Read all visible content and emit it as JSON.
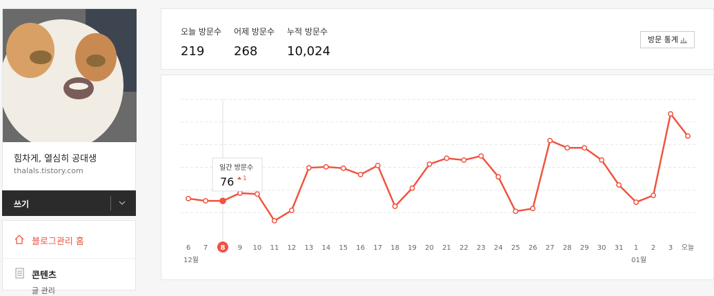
{
  "sidebar": {
    "blog_title": "힘차게, 열심히 공대생",
    "blog_url": "thalals.tistory.com",
    "write": "쓰기",
    "menu": [
      "블로그관리 홈",
      "콘텐츠",
      "글 관리"
    ]
  },
  "stats": {
    "items": [
      {
        "label": "오늘 방문수",
        "value": "219"
      },
      {
        "label": "어제 방문수",
        "value": "268"
      },
      {
        "label": "누적 방문수",
        "value": "10,024"
      }
    ],
    "button": "방문 통계"
  },
  "chart_data": {
    "type": "line",
    "categories": [
      "6",
      "7",
      "8",
      "9",
      "10",
      "11",
      "12",
      "13",
      "14",
      "15",
      "16",
      "17",
      "18",
      "19",
      "20",
      "21",
      "22",
      "23",
      "24",
      "25",
      "26",
      "27",
      "28",
      "29",
      "30",
      "31",
      "1",
      "2",
      "3",
      "오늘"
    ],
    "sublabels": [
      "12월",
      null,
      null,
      null,
      null,
      null,
      null,
      null,
      null,
      null,
      null,
      null,
      null,
      null,
      null,
      null,
      null,
      null,
      null,
      null,
      null,
      null,
      null,
      null,
      null,
      null,
      "01월",
      null,
      null,
      null
    ],
    "series": [
      {
        "name": "일간 방문수",
        "color": "#f0533f",
        "values": [
          81,
          76,
          76,
          93,
          91,
          32,
          55,
          149,
          151,
          148,
          134,
          154,
          64,
          104,
          157,
          170,
          166,
          175,
          129,
          53,
          59,
          209,
          193,
          193,
          166,
          111,
          73,
          88,
          268,
          219
        ]
      }
    ],
    "tooltip_change": 1,
    "ylim": [
      0,
      300
    ],
    "grid": true
  }
}
